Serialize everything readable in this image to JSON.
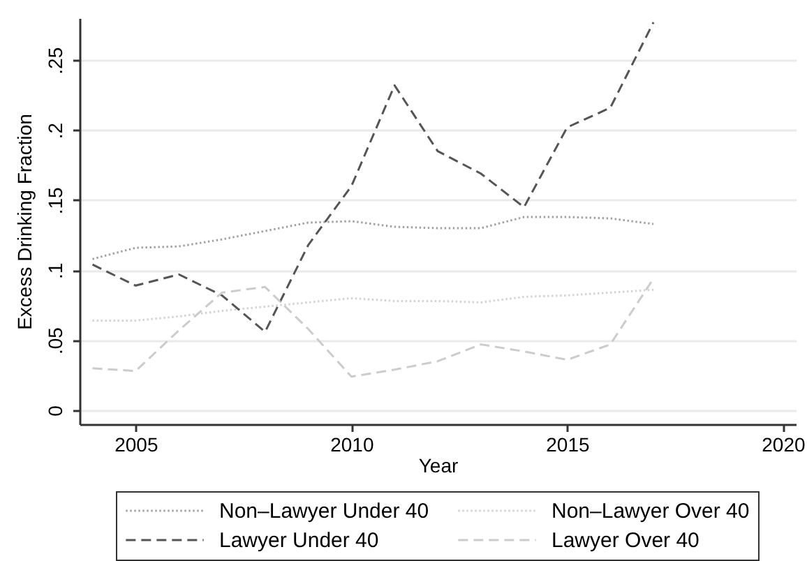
{
  "chart_data": {
    "type": "line",
    "xlabel": "Year",
    "ylabel": "Excess Drinking Fraction",
    "x": [
      2004,
      2005,
      2006,
      2007,
      2008,
      2009,
      2010,
      2011,
      2012,
      2013,
      2014,
      2015,
      2016,
      2017
    ],
    "series": [
      {
        "name": "Non–Lawyer Under 40",
        "color": "#a0a0a0",
        "line_style": "dotted",
        "values": [
          0.108,
          0.116,
          0.117,
          0.122,
          0.128,
          0.134,
          0.135,
          0.131,
          0.13,
          0.13,
          0.138,
          0.138,
          0.137,
          0.133
        ]
      },
      {
        "name": "Non–Lawyer Over 40",
        "color": "#d2d2d2",
        "line_style": "dotted",
        "values": [
          0.064,
          0.064,
          0.067,
          0.071,
          0.074,
          0.077,
          0.08,
          0.078,
          0.078,
          0.077,
          0.081,
          0.082,
          0.084,
          0.086
        ]
      },
      {
        "name": "Lawyer Under 40",
        "color": "#555555",
        "line_style": "dashed",
        "values": [
          0.104,
          0.089,
          0.097,
          0.082,
          0.056,
          0.118,
          0.16,
          0.232,
          0.185,
          0.169,
          0.145,
          0.202,
          0.216,
          0.277
        ]
      },
      {
        "name": "Lawyer Over 40",
        "color": "#cccccc",
        "line_style": "dashed",
        "values": [
          0.03,
          0.028,
          0.057,
          0.084,
          0.088,
          0.058,
          0.024,
          0.029,
          0.035,
          0.047,
          0.042,
          0.036,
          0.047,
          0.094
        ]
      }
    ],
    "xlim": [
      2003.7,
      2020.3
    ],
    "xticks": [
      2005,
      2010,
      2015,
      2020
    ],
    "ylim": [
      -0.01,
      0.28
    ],
    "yticks": [
      0,
      {
        "value": 0.05,
        "label": ".05"
      },
      {
        "value": 0.1,
        "label": ".1"
      },
      {
        "value": 0.15,
        "label": ".15"
      },
      {
        "value": 0.2,
        "label": ".2"
      },
      {
        "value": 0.25,
        "label": ".25"
      }
    ],
    "grid": "y",
    "legend": "bottom"
  }
}
